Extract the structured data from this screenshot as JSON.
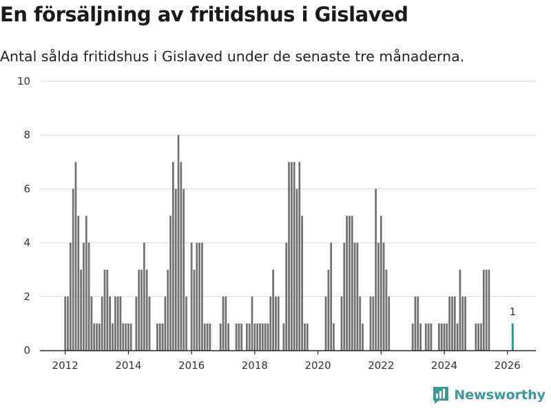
{
  "title": "En försäljning av fritidshus i Gislaved",
  "subtitle": "Antal sålda fritidshus i Gislaved under de senaste tre månaderna.",
  "brand": "Newsworthy",
  "colors": {
    "bar": "#717073",
    "highlight": "#249c97",
    "grid": "#d9d9d9",
    "brand": "#3a9a98"
  },
  "chart_data": {
    "type": "bar",
    "title": "En försäljning av fritidshus i Gislaved",
    "xlabel": "",
    "ylabel": "",
    "ylim": [
      0,
      10
    ],
    "yticks": [
      0,
      2,
      4,
      6,
      8,
      10
    ],
    "xlim": [
      2011.2,
      2026.9
    ],
    "xticks": [
      2012,
      2014,
      2016,
      2018,
      2020,
      2022,
      2024,
      2026
    ],
    "bar_width_years": 0.06,
    "series": [
      {
        "name": "Antal sålda fritidshus",
        "start_month": "2012-01",
        "values": [
          2,
          2,
          4,
          6,
          7,
          5,
          3,
          4,
          5,
          4,
          2,
          1,
          1,
          1,
          2,
          3,
          3,
          2,
          1,
          2,
          2,
          2,
          1,
          1,
          1,
          1,
          0,
          2,
          3,
          3,
          4,
          3,
          2,
          0,
          0,
          1,
          1,
          1,
          2,
          3,
          5,
          7,
          6,
          8,
          7,
          6,
          2,
          0,
          4,
          3,
          4,
          4,
          4,
          1,
          1,
          1,
          0,
          0,
          0,
          1,
          2,
          2,
          1,
          0,
          0,
          1,
          1,
          1,
          0,
          1,
          1,
          2,
          1,
          1,
          1,
          1,
          1,
          1,
          2,
          3,
          2,
          2,
          0,
          1,
          4,
          7,
          7,
          7,
          6,
          7,
          5,
          1,
          1,
          0,
          0,
          0,
          0,
          0,
          0,
          2,
          3,
          4,
          1,
          0,
          0,
          2,
          4,
          5,
          5,
          5,
          4,
          4,
          2,
          1,
          0,
          0,
          2,
          2,
          6,
          4,
          5,
          4,
          3,
          2,
          0,
          0,
          0,
          0,
          0,
          0,
          0,
          0,
          1,
          2,
          2,
          1,
          0,
          1,
          1,
          1,
          0,
          0,
          1,
          1,
          1,
          1,
          2,
          2,
          2,
          1,
          3,
          2,
          2,
          0,
          0,
          0,
          1,
          1,
          1,
          3,
          3,
          3,
          0,
          0,
          0
        ]
      }
    ],
    "highlight": {
      "date": "2026-03",
      "value": 1,
      "label": "1"
    }
  }
}
